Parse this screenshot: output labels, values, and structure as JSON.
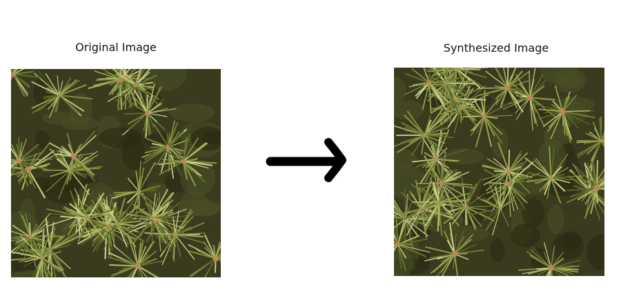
{
  "left": {
    "caption": "Original Image",
    "image": "pine-needle-texture"
  },
  "right": {
    "caption": "Synthesized Image",
    "image": "synthesized-pine-needle-texture"
  },
  "arrow": {
    "icon": "right-arrow-icon"
  },
  "colors": {
    "background": "#ffffff",
    "texture_dark": "#3a3a1e",
    "texture_mid": "#7d8a3c",
    "texture_light": "#c9cf8a",
    "bud": "#b88a5a",
    "arrow": "#000000"
  }
}
